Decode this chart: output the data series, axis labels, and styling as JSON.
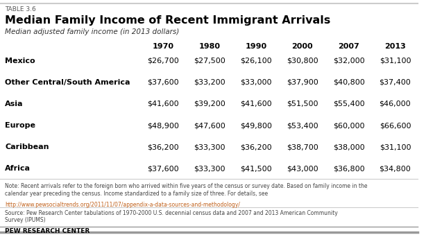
{
  "table_label": "TABLE 3.6",
  "title": "Median Family Income of Recent Immigrant Arrivals",
  "subtitle": "Median adjusted family income (in 2013 dollars)",
  "columns": [
    "1970",
    "1980",
    "1990",
    "2000",
    "2007",
    "2013"
  ],
  "rows": [
    {
      "region": "Mexico",
      "values": [
        "$26,700",
        "$27,500",
        "$26,100",
        "$30,800",
        "$32,000",
        "$31,100"
      ]
    },
    {
      "region": "Other Central/South America",
      "values": [
        "$37,600",
        "$33,200",
        "$33,000",
        "$37,900",
        "$40,800",
        "$37,400"
      ]
    },
    {
      "region": "Asia",
      "values": [
        "$41,600",
        "$39,200",
        "$41,600",
        "$51,500",
        "$55,400",
        "$46,000"
      ]
    },
    {
      "region": "Europe",
      "values": [
        "$48,900",
        "$47,600",
        "$49,800",
        "$53,400",
        "$60,000",
        "$66,600"
      ]
    },
    {
      "region": "Caribbean",
      "values": [
        "$36,200",
        "$33,300",
        "$36,200",
        "$38,700",
        "$38,000",
        "$31,100"
      ]
    },
    {
      "region": "Africa",
      "values": [
        "$37,600",
        "$33,300",
        "$41,500",
        "$43,000",
        "$36,800",
        "$34,800"
      ]
    }
  ],
  "note_text": "Note: Recent arrivals refer to the foreign born who arrived within five years of the census or survey date. Based on family income in the\ncalendar year preceding the census. Income standardized to a family size of three. For details, see",
  "url": "http://www.pewsocialtrends.org/2011/11/07/appendix-a-data-sources-and-methodology/",
  "source_text": "Source: Pew Research Center tabulations of 1970-2000 U.S. decennial census data and 2007 and 2013 American Community\nSurvey (IPUMS)",
  "footer": "PEW RESEARCH CENTER",
  "bg_color": "#ffffff",
  "text_color": "#000000",
  "note_color": "#444444",
  "url_color": "#c0601a",
  "top_bar_color": "#cccccc",
  "sep_color": "#cccccc",
  "bottom_bar_color": "#999999"
}
